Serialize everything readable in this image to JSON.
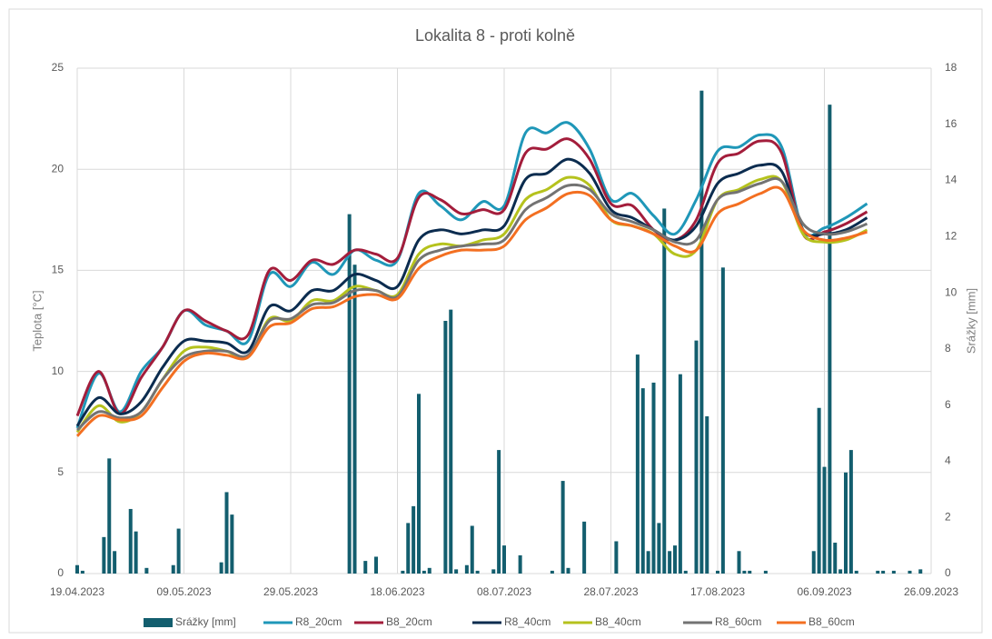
{
  "chart_data": {
    "type": "combo",
    "title": "Lokalita 8 - proti kolně",
    "ylabel": "Teplota [°C]",
    "y2label": "Srážky [mm]",
    "xlim": [
      "19.04.2023",
      "26.09.2023"
    ],
    "xticks": [
      "19.04.2023",
      "09.05.2023",
      "29.05.2023",
      "18.06.2023",
      "08.07.2023",
      "28.07.2023",
      "17.08.2023",
      "06.09.2023",
      "26.09.2023"
    ],
    "ylim": [
      0,
      25
    ],
    "yticks": [
      0,
      5,
      10,
      15,
      20,
      25
    ],
    "y2lim": [
      0,
      18
    ],
    "y2ticks": [
      0,
      2,
      4,
      6,
      8,
      10,
      12,
      14,
      16,
      18
    ],
    "grid": true,
    "legend": "bottom",
    "x": [
      "19.04.2023",
      "23.04.2023",
      "27.04.2023",
      "01.05.2023",
      "05.05.2023",
      "09.05.2023",
      "13.05.2023",
      "17.05.2023",
      "21.05.2023",
      "25.05.2023",
      "29.05.2023",
      "02.06.2023",
      "06.06.2023",
      "10.06.2023",
      "14.06.2023",
      "18.06.2023",
      "22.06.2023",
      "26.06.2023",
      "30.06.2023",
      "04.07.2023",
      "08.07.2023",
      "12.07.2023",
      "16.07.2023",
      "20.07.2023",
      "24.07.2023",
      "28.07.2023",
      "01.08.2023",
      "05.08.2023",
      "09.08.2023",
      "13.08.2023",
      "17.08.2023",
      "21.08.2023",
      "25.08.2023",
      "29.08.2023",
      "02.09.2023",
      "06.09.2023",
      "10.09.2023",
      "14.09.2023"
    ],
    "series": [
      {
        "name": "Srážky [mm]",
        "type": "bar",
        "axis": "y2",
        "color": "#135e6e",
        "x": [
          "19.04.2023",
          "20.04.2023",
          "24.04.2023",
          "25.04.2023",
          "26.04.2023",
          "29.04.2023",
          "30.04.2023",
          "02.05.2023",
          "07.05.2023",
          "08.05.2023",
          "16.05.2023",
          "17.05.2023",
          "18.05.2023",
          "09.06.2023",
          "10.06.2023",
          "12.06.2023",
          "14.06.2023",
          "19.06.2023",
          "20.06.2023",
          "21.06.2023",
          "22.06.2023",
          "23.06.2023",
          "24.06.2023",
          "27.06.2023",
          "28.06.2023",
          "29.06.2023",
          "01.07.2023",
          "02.07.2023",
          "03.07.2023",
          "06.07.2023",
          "07.07.2023",
          "08.07.2023",
          "11.07.2023",
          "17.07.2023",
          "19.07.2023",
          "20.07.2023",
          "23.07.2023",
          "29.07.2023",
          "02.08.2023",
          "03.08.2023",
          "04.08.2023",
          "05.08.2023",
          "06.08.2023",
          "07.08.2023",
          "08.08.2023",
          "09.08.2023",
          "10.08.2023",
          "11.08.2023",
          "13.08.2023",
          "14.08.2023",
          "15.08.2023",
          "17.08.2023",
          "18.08.2023",
          "21.08.2023",
          "22.08.2023",
          "23.08.2023",
          "26.08.2023",
          "04.09.2023",
          "05.09.2023",
          "06.09.2023",
          "07.09.2023",
          "08.09.2023",
          "09.09.2023",
          "10.09.2023",
          "11.09.2023",
          "12.09.2023",
          "16.09.2023",
          "17.09.2023",
          "19.09.2023",
          "22.09.2023",
          "24.09.2023"
        ],
        "values": [
          0.3,
          0.1,
          1.3,
          4.1,
          0.8,
          2.3,
          1.5,
          0.2,
          0.3,
          1.6,
          0.4,
          2.9,
          2.1,
          12.8,
          11.0,
          0.45,
          0.6,
          0.1,
          1.8,
          2.4,
          6.4,
          0.1,
          0.2,
          9.0,
          9.4,
          0.15,
          0.3,
          1.7,
          0.1,
          0.15,
          4.4,
          1.0,
          0.65,
          0.1,
          3.3,
          0.2,
          1.85,
          1.15,
          7.8,
          6.6,
          0.8,
          6.8,
          1.8,
          13.0,
          0.8,
          1.0,
          7.1,
          0.1,
          8.3,
          17.2,
          5.6,
          0.1,
          10.9,
          0.8,
          0.1,
          0.1,
          0.1,
          0.8,
          5.9,
          3.8,
          16.7,
          1.1,
          0.15,
          3.6,
          4.4,
          0.1,
          0.1,
          0.1,
          0.1,
          0.1,
          0.15
        ]
      },
      {
        "name": "R8_20cm",
        "type": "line",
        "color": "#1f97b8",
        "values": [
          7.2,
          9.9,
          8.0,
          10.0,
          11.2,
          13.0,
          12.3,
          12.0,
          11.5,
          14.8,
          14.2,
          15.4,
          14.8,
          16.0,
          15.5,
          15.5,
          18.8,
          18.2,
          17.5,
          18.4,
          18.2,
          21.8,
          21.8,
          22.3,
          21.0,
          18.5,
          18.8,
          17.7,
          16.8,
          18.5,
          20.9,
          21.1,
          21.7,
          21.1,
          17.0,
          17.1,
          17.6,
          18.3
        ]
      },
      {
        "name": "B8_20cm",
        "type": "line",
        "color": "#a31d3b",
        "values": [
          7.8,
          10.0,
          7.9,
          9.7,
          11.2,
          13.0,
          12.5,
          12.0,
          11.8,
          15.0,
          14.5,
          15.5,
          15.3,
          16.0,
          15.8,
          15.6,
          18.6,
          18.5,
          17.8,
          18.0,
          18.0,
          20.8,
          21.0,
          21.5,
          20.5,
          18.3,
          18.2,
          17.0,
          16.5,
          17.5,
          20.3,
          20.8,
          21.4,
          20.8,
          16.8,
          16.9,
          17.3,
          17.9
        ]
      },
      {
        "name": "R8_40cm",
        "type": "line",
        "color": "#0b2c4f",
        "values": [
          7.3,
          8.7,
          7.9,
          8.5,
          10.2,
          11.5,
          11.5,
          11.4,
          11.0,
          13.2,
          13.0,
          14.0,
          14.0,
          14.8,
          14.5,
          14.2,
          16.5,
          17.0,
          16.8,
          17.0,
          17.2,
          19.5,
          19.8,
          20.5,
          19.8,
          18.0,
          17.6,
          17.0,
          16.5,
          17.2,
          19.3,
          19.8,
          20.2,
          19.9,
          17.0,
          16.8,
          17.0,
          17.6
        ]
      },
      {
        "name": "B8_40cm",
        "type": "line",
        "color": "#b5c21d",
        "values": [
          7.0,
          8.3,
          7.5,
          8.0,
          9.6,
          11.0,
          11.2,
          11.0,
          10.7,
          12.6,
          12.5,
          13.5,
          13.5,
          14.2,
          14.0,
          13.8,
          15.8,
          16.3,
          16.2,
          16.5,
          16.8,
          18.5,
          19.0,
          19.6,
          19.2,
          17.5,
          17.2,
          16.8,
          15.8,
          16.0,
          18.5,
          19.0,
          19.5,
          19.4,
          16.8,
          16.4,
          16.5,
          17.0
        ]
      },
      {
        "name": "R8_60cm",
        "type": "line",
        "color": "#737373",
        "values": [
          7.1,
          8.0,
          7.7,
          8.0,
          9.6,
          10.7,
          11.0,
          11.0,
          10.8,
          12.5,
          12.6,
          13.3,
          13.4,
          14.0,
          14.0,
          13.7,
          15.5,
          16.0,
          16.2,
          16.3,
          16.5,
          18.0,
          18.6,
          19.2,
          19.0,
          17.8,
          17.4,
          17.0,
          16.4,
          16.5,
          18.5,
          18.9,
          19.3,
          19.4,
          17.3,
          16.8,
          16.9,
          17.3
        ]
      },
      {
        "name": "B8_60cm",
        "type": "line",
        "color": "#f36f21",
        "values": [
          6.8,
          7.8,
          7.6,
          7.8,
          9.2,
          10.5,
          10.9,
          10.8,
          10.7,
          12.2,
          12.4,
          13.1,
          13.2,
          13.7,
          13.8,
          13.6,
          15.1,
          15.7,
          16.0,
          16.0,
          16.2,
          17.5,
          18.1,
          18.8,
          18.7,
          17.5,
          17.2,
          16.8,
          16.2,
          16.0,
          17.8,
          18.3,
          18.8,
          19.0,
          17.0,
          16.5,
          16.6,
          16.9
        ]
      }
    ]
  }
}
